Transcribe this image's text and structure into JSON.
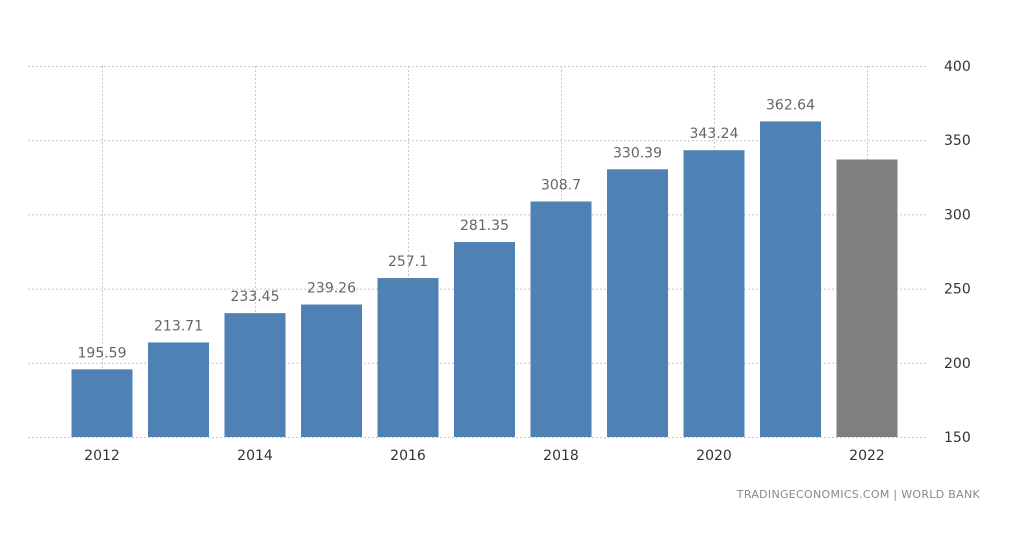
{
  "source": "TRADINGECONOMICS.COM | WORLD BANK",
  "colors": {
    "bar": "#4f81b4",
    "bar_estimate": "#7f7f7f"
  },
  "chart_data": {
    "type": "bar",
    "title": "",
    "xlabel": "",
    "ylabel": "",
    "categories": [
      "2012",
      "2013",
      "2014",
      "2015",
      "2016",
      "2017",
      "2018",
      "2019",
      "2020",
      "2021",
      "2022"
    ],
    "values": [
      195.59,
      213.71,
      233.45,
      239.26,
      257.1,
      281.35,
      308.7,
      330.39,
      343.24,
      362.64,
      337
    ],
    "data_labels": [
      "195.59",
      "213.71",
      "233.45",
      "239.26",
      "257.1",
      "281.35",
      "308.7",
      "330.39",
      "343.24",
      "362.64",
      ""
    ],
    "estimate_index": 10,
    "x_tick_labels": [
      "2012",
      "2014",
      "2016",
      "2018",
      "2020",
      "2022"
    ],
    "y_ticks": [
      150,
      200,
      250,
      300,
      350,
      400
    ],
    "ylim": [
      150,
      400
    ],
    "y_axis_side": "right",
    "grid": true,
    "legend": "none"
  }
}
